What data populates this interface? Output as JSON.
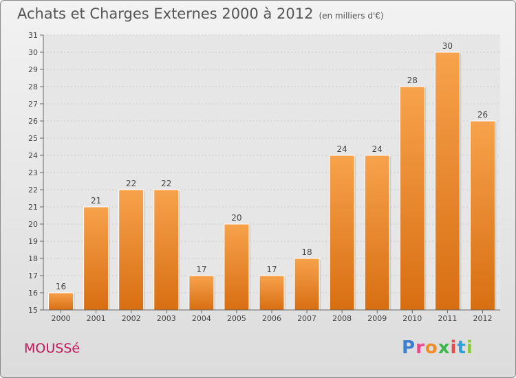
{
  "title": "Achats et Charges Externes 2000 à 2012",
  "subtitle": "(en milliers d'€)",
  "commune": "MOUSSé",
  "brand": {
    "letters": [
      "P",
      "r",
      "o",
      "x",
      "i",
      "t",
      "i"
    ],
    "colors": [
      "#3b7fd0",
      "#e84a8a",
      "#f28c28",
      "#3db54a",
      "#e84a4a",
      "#2e9fd8",
      "#8dc63f"
    ]
  },
  "chart_data": {
    "type": "bar",
    "categories": [
      "2000",
      "2001",
      "2002",
      "2003",
      "2004",
      "2005",
      "2006",
      "2007",
      "2008",
      "2009",
      "2010",
      "2011",
      "2012"
    ],
    "values": [
      16,
      21,
      22,
      22,
      17,
      20,
      17,
      18,
      24,
      24,
      28,
      30,
      26
    ],
    "ylim": [
      15,
      31
    ],
    "yticks": [
      15,
      16,
      17,
      18,
      19,
      20,
      21,
      22,
      23,
      24,
      25,
      26,
      27,
      28,
      29,
      30,
      31
    ],
    "grid": true,
    "bar_color": "#f0922e"
  }
}
